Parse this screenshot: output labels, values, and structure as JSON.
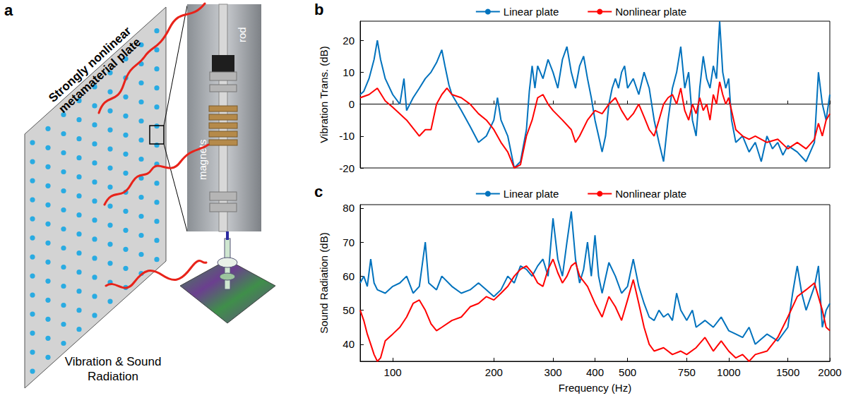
{
  "diagram": {
    "panel_label": "a",
    "plate_label": "Strongly nonlinear metamaterial plate",
    "inset_labels": [
      "rod",
      "magnets"
    ],
    "caption": "Vibration & Sound Radiation"
  },
  "chart_data": [
    {
      "type": "line",
      "panel_label": "b",
      "y_label": "Vibration Trans. (dB)",
      "log": "x",
      "grid": false,
      "legend": "top",
      "tick_labels": "y",
      "xlim": [
        80,
        2000
      ],
      "xticks": [
        100,
        200,
        300,
        400,
        500,
        750,
        1000,
        1500,
        2000
      ],
      "ylim": [
        -20,
        26
      ],
      "yticks": [
        -20,
        -10,
        0,
        10,
        20
      ],
      "series": [
        {
          "name": "Linear plate",
          "color": "#0072BD",
          "x": [
            80,
            82,
            85,
            88,
            90,
            92,
            95,
            100,
            105,
            108,
            110,
            115,
            120,
            125,
            130,
            135,
            140,
            143,
            147,
            150,
            160,
            170,
            180,
            190,
            200,
            205,
            210,
            220,
            230,
            240,
            250,
            255,
            260,
            265,
            270,
            280,
            290,
            300,
            310,
            320,
            330,
            340,
            350,
            360,
            370,
            380,
            390,
            400,
            410,
            420,
            430,
            440,
            450,
            460,
            470,
            480,
            490,
            500,
            520,
            540,
            560,
            580,
            600,
            620,
            640,
            660,
            680,
            700,
            720,
            740,
            760,
            780,
            800,
            820,
            840,
            860,
            880,
            900,
            920,
            940,
            960,
            980,
            1000,
            1020,
            1050,
            1100,
            1150,
            1200,
            1250,
            1300,
            1350,
            1400,
            1450,
            1500,
            1600,
            1700,
            1800,
            1850,
            1900,
            1950,
            2000
          ],
          "values": [
            3,
            4,
            8,
            14,
            20,
            14,
            8,
            3,
            0,
            8,
            -2,
            2,
            5,
            8,
            10,
            13,
            17,
            12,
            6,
            3,
            -2,
            -7,
            -12,
            -10,
            -5,
            2,
            -5,
            -10,
            -20,
            -18,
            -8,
            4,
            12,
            5,
            12,
            8,
            14,
            10,
            5,
            14,
            18,
            10,
            5,
            12,
            15,
            8,
            2,
            -5,
            -10,
            -15,
            -10,
            0,
            5,
            8,
            5,
            10,
            12,
            5,
            8,
            3,
            10,
            5,
            -5,
            -12,
            -18,
            -5,
            5,
            10,
            18,
            5,
            10,
            -5,
            -10,
            5,
            15,
            8,
            5,
            12,
            8,
            26,
            10,
            5,
            8,
            -5,
            -12,
            -10,
            -15,
            -12,
            -18,
            -10,
            -14,
            -12,
            -16,
            -13,
            -15,
            -18,
            -12,
            10,
            0,
            -5,
            3
          ]
        },
        {
          "name": "Nonlinear plate",
          "color": "#FF0000",
          "x": [
            80,
            85,
            90,
            95,
            100,
            110,
            120,
            125,
            130,
            135,
            140,
            145,
            150,
            160,
            170,
            180,
            190,
            200,
            210,
            220,
            230,
            240,
            250,
            260,
            270,
            280,
            290,
            300,
            320,
            340,
            350,
            360,
            380,
            400,
            420,
            440,
            460,
            480,
            500,
            520,
            540,
            560,
            580,
            600,
            620,
            640,
            660,
            680,
            700,
            720,
            740,
            760,
            780,
            800,
            820,
            840,
            860,
            880,
            900,
            920,
            940,
            960,
            980,
            1000,
            1050,
            1100,
            1150,
            1200,
            1300,
            1400,
            1500,
            1600,
            1700,
            1800,
            1850,
            1900,
            1950,
            2000
          ],
          "values": [
            2,
            3,
            5,
            1,
            -1,
            -5,
            -10,
            -8,
            -8,
            0,
            3,
            5,
            3,
            2,
            0,
            -3,
            -5,
            -8,
            -12,
            -15,
            -20,
            -19,
            -10,
            -5,
            2,
            3,
            0,
            -2,
            -5,
            -8,
            -12,
            -10,
            -5,
            -2,
            -3,
            0,
            2,
            -2,
            -5,
            -3,
            0,
            -4,
            -8,
            -10,
            -5,
            0,
            2,
            3,
            0,
            5,
            -2,
            -5,
            0,
            -3,
            2,
            -2,
            0,
            -5,
            3,
            0,
            7,
            3,
            0,
            2,
            -8,
            -10,
            -11,
            -10,
            -12,
            -11,
            -14,
            -12,
            -14,
            -11,
            -6,
            -10,
            -5,
            -3
          ]
        }
      ]
    },
    {
      "type": "line",
      "panel_label": "c",
      "x_label": "Frequency (Hz)",
      "y_label": "Sound Radiation (dB)",
      "log": "x",
      "grid": false,
      "legend": "top",
      "xlim": [
        80,
        2000
      ],
      "xticks": [
        100,
        200,
        300,
        400,
        500,
        750,
        1000,
        1500,
        2000
      ],
      "ylim": [
        35,
        81
      ],
      "yticks": [
        40,
        50,
        60,
        70,
        80
      ],
      "series": [
        {
          "name": "Linear plate",
          "color": "#0072BD",
          "x": [
            80,
            82,
            84,
            86,
            88,
            90,
            95,
            100,
            105,
            110,
            115,
            120,
            125,
            128,
            135,
            140,
            150,
            160,
            170,
            180,
            190,
            200,
            210,
            220,
            230,
            240,
            250,
            260,
            270,
            280,
            290,
            300,
            310,
            320,
            330,
            340,
            350,
            360,
            370,
            380,
            390,
            400,
            410,
            420,
            440,
            460,
            480,
            500,
            520,
            540,
            560,
            580,
            600,
            620,
            640,
            660,
            680,
            700,
            720,
            750,
            780,
            800,
            850,
            900,
            950,
            1000,
            1050,
            1100,
            1150,
            1200,
            1300,
            1400,
            1500,
            1550,
            1600,
            1650,
            1700,
            1800,
            1850,
            1900,
            1950,
            2000
          ],
          "values": [
            58,
            60,
            57,
            65,
            58,
            56,
            55,
            57,
            58,
            60,
            55,
            57,
            70,
            58,
            56,
            60,
            57,
            55,
            56,
            58,
            56,
            54,
            56,
            60,
            58,
            63,
            62,
            60,
            63,
            65,
            60,
            77,
            65,
            60,
            70,
            79,
            65,
            58,
            62,
            70,
            60,
            72,
            60,
            55,
            64,
            60,
            55,
            57,
            65,
            57,
            52,
            48,
            47,
            50,
            48,
            49,
            47,
            55,
            50,
            47,
            50,
            45,
            47,
            45,
            48,
            44,
            43,
            42,
            45,
            40,
            43,
            41,
            45,
            55,
            63,
            55,
            50,
            57,
            63,
            45,
            50,
            52
          ]
        },
        {
          "name": "Nonlinear plate",
          "color": "#FF0000",
          "x": [
            80,
            82,
            84,
            86,
            88,
            90,
            92,
            95,
            100,
            105,
            110,
            115,
            120,
            125,
            130,
            135,
            140,
            150,
            160,
            170,
            180,
            190,
            200,
            210,
            220,
            230,
            240,
            250,
            260,
            270,
            280,
            290,
            300,
            310,
            320,
            330,
            340,
            350,
            360,
            380,
            400,
            420,
            440,
            460,
            480,
            500,
            520,
            540,
            560,
            580,
            600,
            640,
            680,
            720,
            750,
            800,
            850,
            900,
            950,
            1000,
            1050,
            1100,
            1150,
            1200,
            1300,
            1400,
            1500,
            1600,
            1700,
            1800,
            1900,
            1950,
            2000
          ],
          "values": [
            50,
            47,
            43,
            40,
            37,
            35,
            36,
            41,
            43,
            45,
            48,
            52,
            53,
            50,
            46,
            44,
            45,
            47,
            48,
            51,
            52,
            54,
            53,
            55,
            57,
            60,
            62,
            63,
            61,
            58,
            57,
            62,
            65,
            61,
            58,
            60,
            63,
            64,
            60,
            57,
            52,
            48,
            54,
            51,
            47,
            53,
            59,
            52,
            45,
            40,
            38,
            39,
            37,
            38,
            37,
            39,
            42,
            38,
            41,
            38,
            36,
            37,
            35,
            37,
            38,
            42,
            48,
            54,
            56,
            58,
            50,
            45,
            44
          ]
        }
      ]
    }
  ]
}
